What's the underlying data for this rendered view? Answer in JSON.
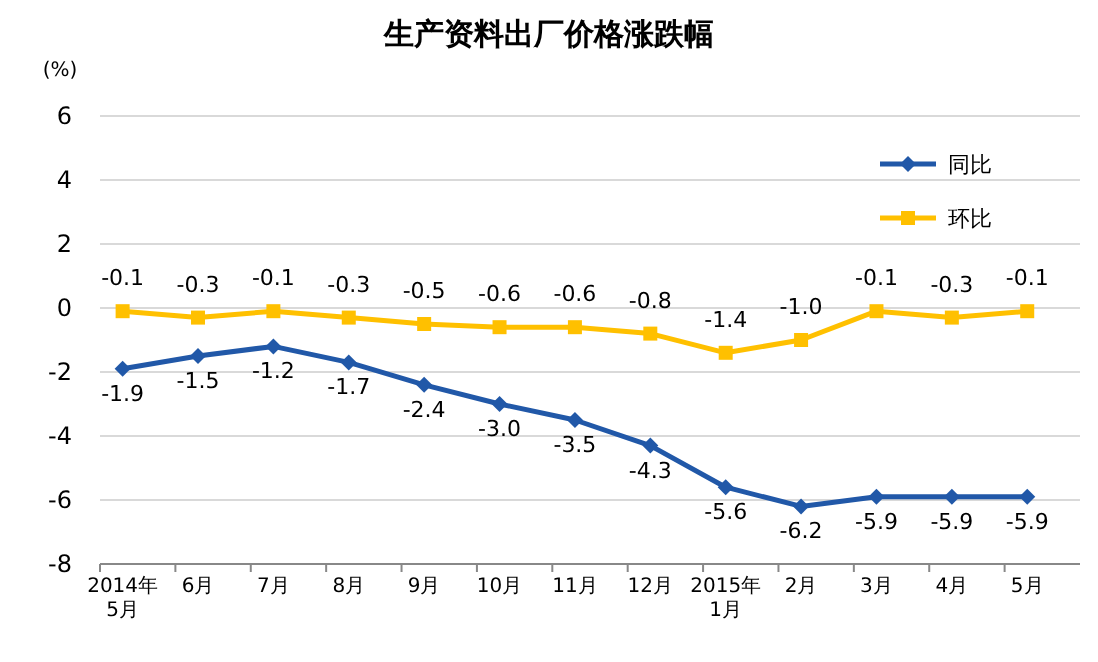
{
  "chart_data": {
    "type": "line",
    "title": "生产资料出厂价格涨跌幅",
    "ylabel": "(%)",
    "categories": [
      "2014年\n5月",
      "6月",
      "7月",
      "8月",
      "9月",
      "10月",
      "11月",
      "12月",
      "2015年\n1月",
      "2月",
      "3月",
      "4月",
      "5月"
    ],
    "series": [
      {
        "name": "同比",
        "color": "#2158a8",
        "marker": "diamond",
        "values": [
          -1.9,
          -1.5,
          -1.2,
          -1.7,
          -2.4,
          -3.0,
          -3.5,
          -4.3,
          -5.6,
          -6.2,
          -5.9,
          -5.9,
          -5.9
        ],
        "value_labels": [
          "-1.9",
          "-1.5",
          "-1.2",
          "-1.7",
          "-2.4",
          "-3.0",
          "-3.5",
          "-4.3",
          "-5.6",
          "-6.2",
          "-5.9",
          "-5.9",
          "-5.9"
        ]
      },
      {
        "name": "环比",
        "color": "#ffc000",
        "marker": "square",
        "values": [
          -0.1,
          -0.3,
          -0.1,
          -0.3,
          -0.5,
          -0.6,
          -0.6,
          -0.8,
          -1.4,
          -1.0,
          -0.1,
          -0.3,
          -0.1
        ],
        "value_labels": [
          "-0.1",
          "-0.3",
          "-0.1",
          "-0.3",
          "-0.5",
          "-0.6",
          "-0.6",
          "-0.8",
          "-1.4",
          "-1.0",
          "-0.1",
          "-0.3",
          "-0.1"
        ]
      }
    ],
    "ylim": [
      -8,
      6
    ],
    "yticks": [
      -8,
      -6,
      -4,
      -2,
      0,
      2,
      4,
      6
    ],
    "grid": "y",
    "legend": "top right",
    "line_style": "solid"
  }
}
